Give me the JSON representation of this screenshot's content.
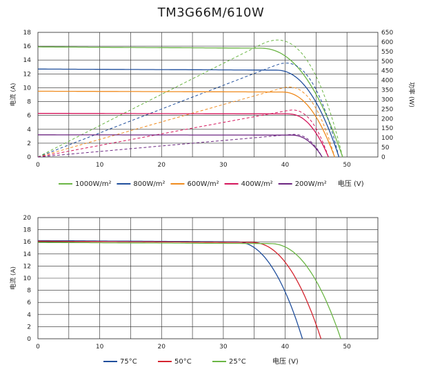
{
  "chart_title": "TM3G66M/610W",
  "chart_data": [
    {
      "type": "line",
      "title": "TM3G66M/610W",
      "xlabel": "电压 (V)",
      "ylabel": "电流 (A)",
      "y2label": "功率 (W)",
      "xlim": [
        0,
        55
      ],
      "ylim": [
        0,
        18
      ],
      "y2lim": [
        0,
        650
      ],
      "xticks": [
        "0",
        "10",
        "20",
        "30",
        "40",
        "50"
      ],
      "yticks": [
        "0",
        "2",
        "4",
        "6",
        "8",
        "10",
        "12",
        "14",
        "16",
        "18"
      ],
      "y2ticks": [
        "0",
        "50",
        "100",
        "150",
        "200",
        "250",
        "300",
        "350",
        "400",
        "450",
        "500",
        "550",
        "600",
        "650"
      ],
      "grid": true,
      "legend_position": "bottom",
      "series": [
        {
          "name": "1000W/m²",
          "color": "#6ab544",
          "isc": 15.9,
          "voc": 49.3,
          "vk": 36.0,
          "pmax": 610
        },
        {
          "name": "800W/m²",
          "color": "#1f4e9c",
          "isc": 12.7,
          "voc": 48.7,
          "vk": 38.5,
          "pmax": 490
        },
        {
          "name": "600W/m²",
          "color": "#f08a1c",
          "isc": 9.5,
          "voc": 48.0,
          "vk": 39.5,
          "pmax": 365
        },
        {
          "name": "400W/m²",
          "color": "#d4145a",
          "isc": 6.3,
          "voc": 47.0,
          "vk": 40.5,
          "pmax": 245
        },
        {
          "name": "200W/m²",
          "color": "#6b2480",
          "isc": 3.2,
          "voc": 46.0,
          "vk": 41.0,
          "pmax": 118
        }
      ]
    },
    {
      "type": "line",
      "xlabel": "电压 (V)",
      "ylabel": "电流 (A)",
      "xlim": [
        0,
        55
      ],
      "ylim": [
        0,
        20
      ],
      "xticks": [
        "0",
        "10",
        "20",
        "30",
        "40",
        "50"
      ],
      "yticks": [
        "0",
        "2",
        "4",
        "6",
        "8",
        "10",
        "12",
        "14",
        "16",
        "18",
        "20"
      ],
      "grid": true,
      "legend_position": "bottom",
      "series": [
        {
          "name": "75°C",
          "color": "#1f4e9c",
          "isc": 16.2,
          "voc": 42.8,
          "vk": 32.0
        },
        {
          "name": "50°C",
          "color": "#d4232e",
          "isc": 16.1,
          "voc": 45.8,
          "vk": 34.5
        },
        {
          "name": "25°C",
          "color": "#6ab544",
          "isc": 15.9,
          "voc": 49.0,
          "vk": 37.5
        }
      ]
    }
  ],
  "colors": {
    "frame": "#222222",
    "grid": "#222222",
    "text": "#222222"
  }
}
